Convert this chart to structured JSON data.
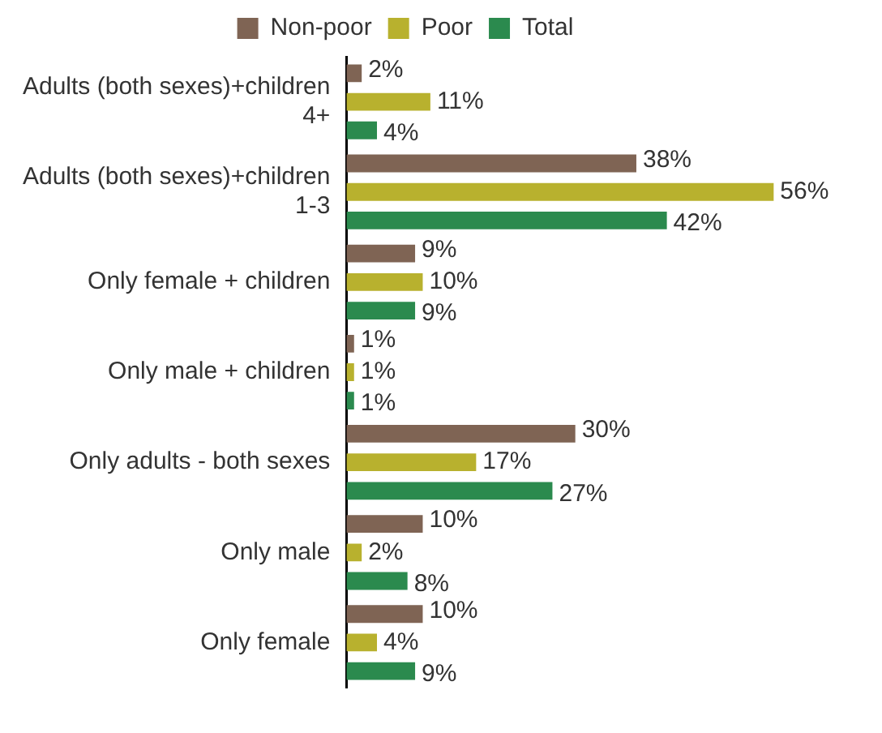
{
  "chart_data": {
    "type": "bar",
    "orientation": "horizontal",
    "legend": "top",
    "grid": false,
    "categories": [
      "Adults (both sexes)+children 4+",
      "Adults (both sexes)+children 1-3",
      "Only female + children",
      "Only male + children",
      "Only adults - both sexes",
      "Only male",
      "Only female"
    ],
    "series": [
      {
        "name": "Non-poor",
        "color": "#7f6454",
        "values": [
          2,
          38,
          9,
          1,
          30,
          10,
          10
        ],
        "value_labels": [
          "2%",
          "38%",
          "9%",
          "1%",
          "30%",
          "10%",
          "10%"
        ]
      },
      {
        "name": "Poor",
        "color": "#b8b12e",
        "values": [
          11,
          56,
          10,
          1,
          17,
          2,
          4
        ],
        "value_labels": [
          "11%",
          "56%",
          "10%",
          "1%",
          "17%",
          "2%",
          "4%"
        ]
      },
      {
        "name": "Total",
        "color": "#2b8a4e",
        "values": [
          4,
          42,
          9,
          1,
          27,
          8,
          9
        ],
        "value_labels": [
          "4%",
          "42%",
          "9%",
          "1%",
          "27%",
          "8%",
          "9%"
        ]
      }
    ]
  }
}
